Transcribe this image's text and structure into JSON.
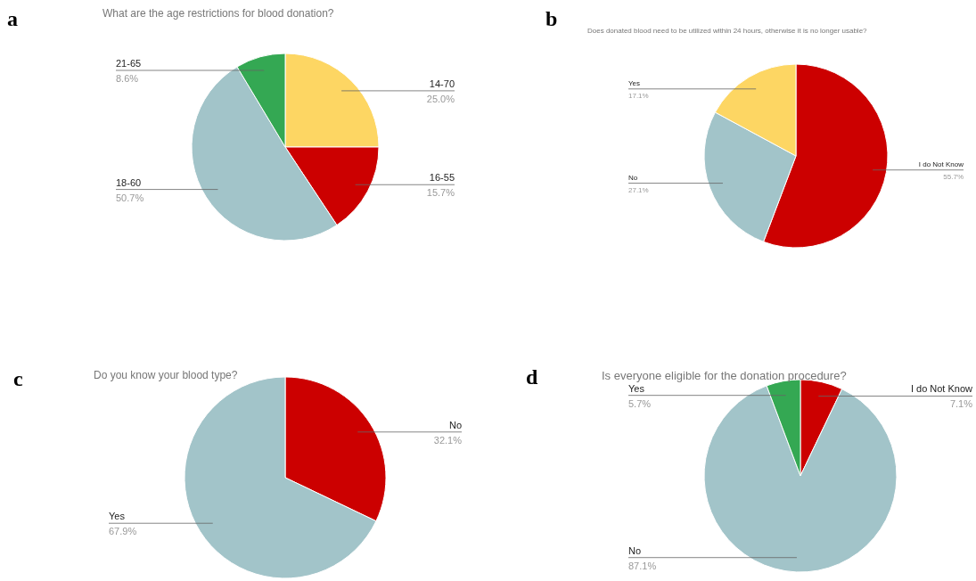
{
  "chart_data": [
    {
      "type": "pie",
      "title": "What are the age restrictions for blood donation?",
      "annotations": [
        "a"
      ],
      "categories": [
        "14-70",
        "16-55",
        "18-60",
        "21-65"
      ],
      "values": [
        25.0,
        15.7,
        50.7,
        8.6
      ],
      "colors": [
        "#fdd663",
        "#cc0000",
        "#a2c4c9",
        "#34a853"
      ],
      "value_labels": [
        "25.0%",
        "15.7%",
        "50.7%",
        "8.6%"
      ]
    },
    {
      "type": "pie",
      "title": "Does donated blood need to be utilized within 24 hours, otherwise it is no longer usable?",
      "annotations": [
        "b"
      ],
      "categories": [
        "I do Not Know",
        "No",
        "Yes"
      ],
      "values": [
        55.7,
        27.1,
        17.1
      ],
      "colors": [
        "#cc0000",
        "#a2c4c9",
        "#fdd663"
      ],
      "value_labels": [
        "55.7%",
        "27.1%",
        "17.1%"
      ]
    },
    {
      "type": "pie",
      "title": "Do you know your blood type?",
      "annotations": [
        "c"
      ],
      "categories": [
        "No",
        "Yes"
      ],
      "values": [
        32.1,
        67.9
      ],
      "colors": [
        "#cc0000",
        "#a2c4c9"
      ],
      "value_labels": [
        "32.1%",
        "67.9%"
      ]
    },
    {
      "type": "pie",
      "title": "Is everyone eligible for the donation procedure?",
      "annotations": [
        "d"
      ],
      "categories": [
        "I do Not Know",
        "No",
        "Yes"
      ],
      "values": [
        7.1,
        87.1,
        5.7
      ],
      "colors": [
        "#cc0000",
        "#a2c4c9",
        "#34a853"
      ],
      "value_labels": [
        "7.1%",
        "87.1%",
        "5.7%"
      ]
    }
  ]
}
